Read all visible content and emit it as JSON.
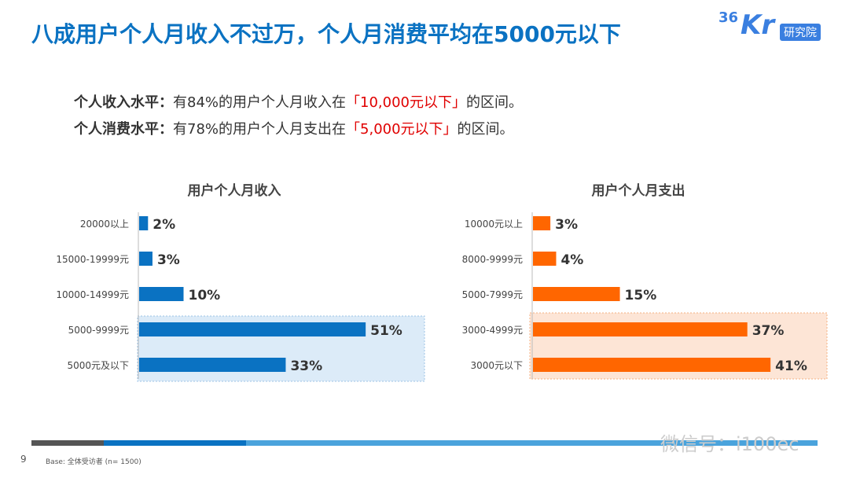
{
  "title": "八成用户个人月收入不过万，个人月消费平均在5000元以下",
  "logo": {
    "num": "36",
    "kr": "Kr",
    "box": "研究院"
  },
  "summary": [
    {
      "label": "个人收入水平：",
      "text": "有84%的用户个人月收入在",
      "highlight": "「10,000元以下」",
      "tail": "的区间。"
    },
    {
      "label": "个人消费水平：",
      "text": "有78%的用户个人月支出在",
      "highlight": "「5,000元以下」",
      "tail": "的区间。"
    }
  ],
  "colors": {
    "income": "#0a72c2",
    "expense": "#ff6600",
    "income_highlight": "#dcebf8",
    "expense_highlight": "#fde5d6",
    "title": "#0a72c2"
  },
  "chart_data": [
    {
      "type": "bar",
      "orientation": "horizontal",
      "title": "用户个人月收入",
      "categories": [
        "20000以上",
        "15000-19999元",
        "10000-14999元",
        "5000-9999元",
        "5000元及以下"
      ],
      "values": [
        2,
        3,
        10,
        51,
        33
      ],
      "labels": [
        "2%",
        "3%",
        "10%",
        "51%",
        "33%"
      ],
      "unit": "%",
      "highlighted": [
        "5000-9999元",
        "5000元及以下"
      ]
    },
    {
      "type": "bar",
      "orientation": "horizontal",
      "title": "用户个人月支出",
      "categories": [
        "10000元以上",
        "8000-9999元",
        "5000-7999元",
        "3000-4999元",
        "3000元以下"
      ],
      "values": [
        3,
        4,
        15,
        37,
        41
      ],
      "labels": [
        "3%",
        "4%",
        "15%",
        "37%",
        "41%"
      ],
      "unit": "%",
      "highlighted": [
        "3000-4999元",
        "3000元以下"
      ]
    }
  ],
  "footer": {
    "page": "9",
    "base": "Base: 全体受访者 (n= 1500)"
  },
  "watermark": "微信号：i100ec"
}
